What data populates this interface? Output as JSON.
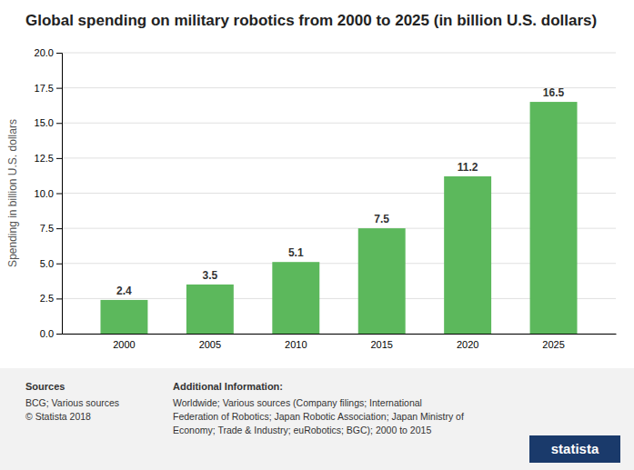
{
  "chart_data": {
    "type": "bar",
    "title": "Global spending on military robotics from 2000 to 2025 (in billion U.S. dollars)",
    "categories": [
      "2000",
      "2005",
      "2010",
      "2015",
      "2020",
      "2025"
    ],
    "values": [
      2.4,
      3.5,
      5.1,
      7.5,
      11.2,
      16.5
    ],
    "color": "#5cb85c",
    "ylabel": "Spending in billion U.S. dollars",
    "ylim": [
      0,
      20
    ],
    "yticks": [
      {
        "value": 0,
        "label": "0.0"
      },
      2.5,
      {
        "value": 5,
        "label": "5.0"
      },
      7.5,
      {
        "value": 10,
        "label": "10.0"
      },
      12.5,
      {
        "value": 15,
        "label": "15.0"
      },
      17.5,
      {
        "value": 20,
        "label": "20.0"
      }
    ],
    "grid": true,
    "data_labels": true,
    "annotations": [
      "Sources",
      "BCG; Various sources\n© Statista 2018",
      "Additional Information:",
      "Worldwide; Various sources (Company filings; International\nFederation of Robotics; Japan Robotic Association; Japan Ministry of\nEconomy; Trade & Industry; euRobotics; BGC); 2000 to 2015",
      "statista"
    ]
  }
}
